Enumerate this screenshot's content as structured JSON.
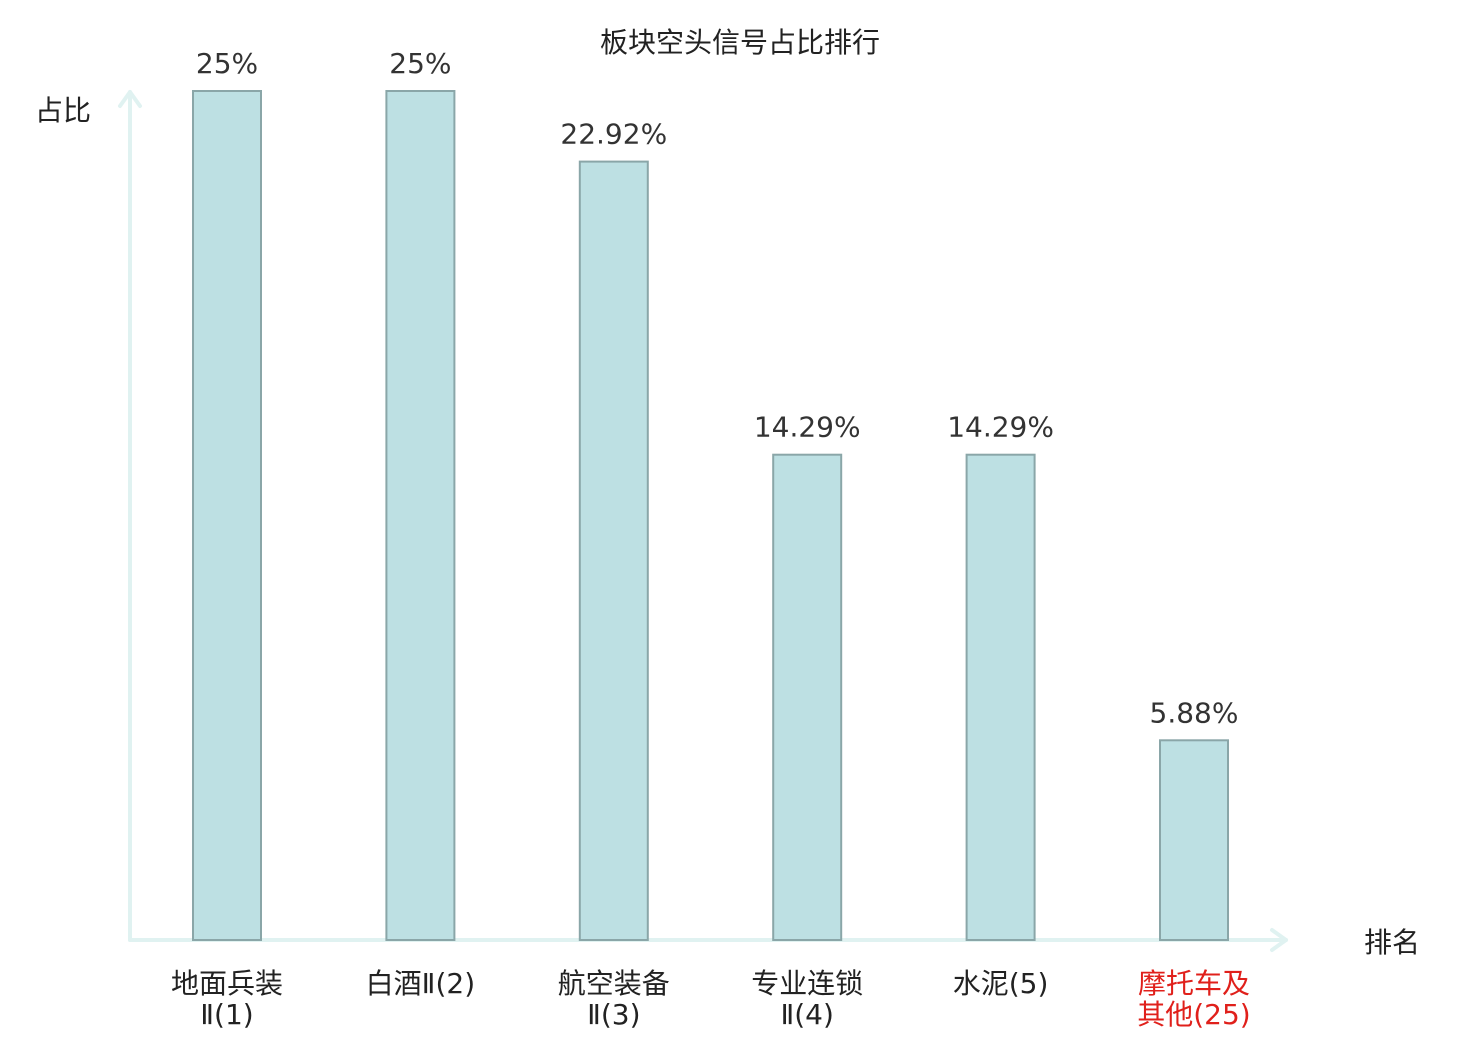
{
  "chart_data": {
    "type": "bar",
    "title": "板块空头信号占比排行",
    "ylabel": "占比",
    "xlabel": "排名",
    "categories": [
      {
        "lines": [
          "地面兵装",
          "Ⅱ(1)"
        ],
        "highlight": false
      },
      {
        "lines": [
          "白酒Ⅱ(2)"
        ],
        "highlight": false
      },
      {
        "lines": [
          "航空装备",
          "Ⅱ(3)"
        ],
        "highlight": false
      },
      {
        "lines": [
          "专业连锁",
          "Ⅱ(4)"
        ],
        "highlight": false
      },
      {
        "lines": [
          "水泥(5)"
        ],
        "highlight": false
      },
      {
        "lines": [
          "摩托车及",
          "其他(25)"
        ],
        "highlight": true
      }
    ],
    "values": [
      25,
      25,
      22.92,
      14.29,
      14.29,
      5.88
    ],
    "value_labels": [
      "25%",
      "25%",
      "22.92%",
      "14.29%",
      "14.29%",
      "5.88%"
    ],
    "ylim": [
      0,
      25
    ],
    "grid": false,
    "colors": {
      "bar_fill": "#bde0e3",
      "bar_stroke": "#8aa6a8",
      "axis": "#e0f2f1",
      "highlight_text": "#e0201b",
      "normal_text": "#222222"
    }
  }
}
